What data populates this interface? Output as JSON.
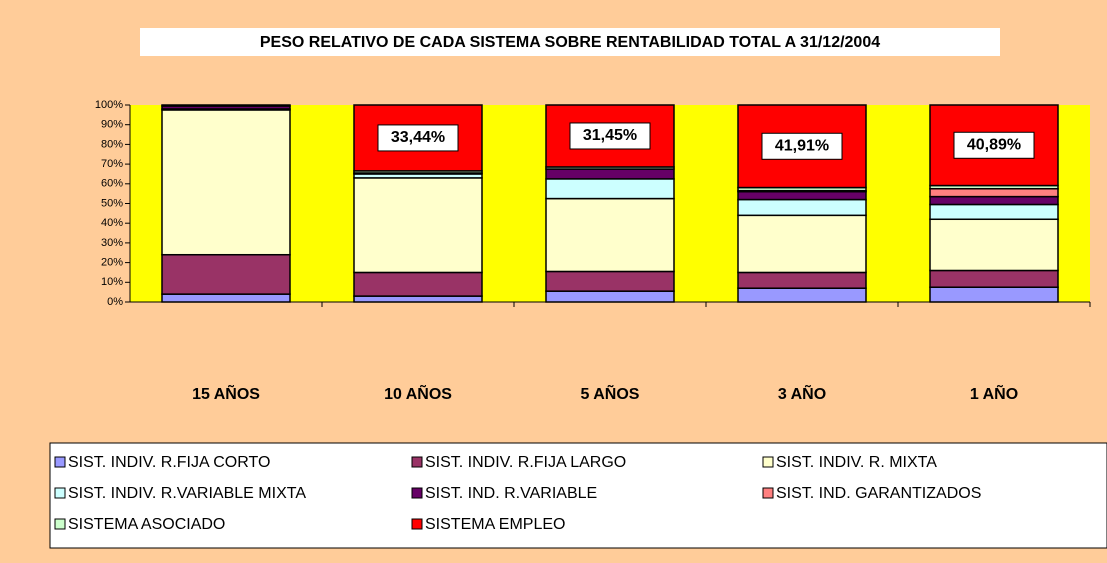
{
  "chart_data": {
    "type": "stacked_bar",
    "title": "PESO RELATIVO DE CADA SISTEMA SOBRE RENTABILIDAD TOTAL A 31/12/2004",
    "categories": [
      "15 AÑOS",
      "10 AÑOS",
      "5 AÑOS",
      "3 AÑO",
      "1 AÑO"
    ],
    "ylim": [
      0,
      100
    ],
    "yticks": [
      {
        "value": 0,
        "label": "0%"
      },
      {
        "value": 10,
        "label": "10%"
      },
      {
        "value": 20,
        "label": "20%"
      },
      {
        "value": 30,
        "label": "30%"
      },
      {
        "value": 40,
        "label": "40%"
      },
      {
        "value": 50,
        "label": "50%"
      },
      {
        "value": 60,
        "label": "60%"
      },
      {
        "value": 70,
        "label": "70%"
      },
      {
        "value": 80,
        "label": "80%"
      },
      {
        "value": 90,
        "label": "90%"
      },
      {
        "value": 100,
        "label": "100%"
      }
    ],
    "plot_background": "#ffff00",
    "legend": "bottom",
    "series": [
      {
        "name": "SIST. INDIV. R.FIJA CORTO",
        "color": "#9999ff",
        "values": [
          4,
          3,
          5.5,
          7,
          7.5
        ]
      },
      {
        "name": "SIST. INDIV. R.FIJA LARGO",
        "color": "#993366",
        "values": [
          20,
          12,
          10,
          8,
          8.5
        ]
      },
      {
        "name": "SIST. INDIV. R. MIXTA",
        "color": "#ffffcc",
        "values": [
          73.5,
          48,
          37,
          29,
          26
        ]
      },
      {
        "name": "SIST. INDIV. R.VARIABLE MIXTA",
        "color": "#ccffff",
        "values": [
          0.5,
          2,
          10,
          8,
          7.5
        ]
      },
      {
        "name": "SIST. IND. R.VARIABLE",
        "color": "#660066",
        "values": [
          1.5,
          0.5,
          5,
          4,
          4
        ]
      },
      {
        "name": "SIST. IND. GARANTIZADOS",
        "color": "#ff8080",
        "values": [
          0,
          0,
          0,
          0.5,
          4
        ]
      },
      {
        "name": "SISTEMA ASOCIADO",
        "color": "#ccffcc",
        "values": [
          0,
          1.06,
          1.05,
          1.59,
          1.61
        ]
      },
      {
        "name": "SISTEMA EMPLEO",
        "color": "#ff0000",
        "values": [
          0.5,
          33.44,
          31.45,
          41.91,
          40.89
        ],
        "value_labels": [
          null,
          "33,44%",
          "31,45%",
          "41,91%",
          "40,89%"
        ]
      }
    ]
  }
}
